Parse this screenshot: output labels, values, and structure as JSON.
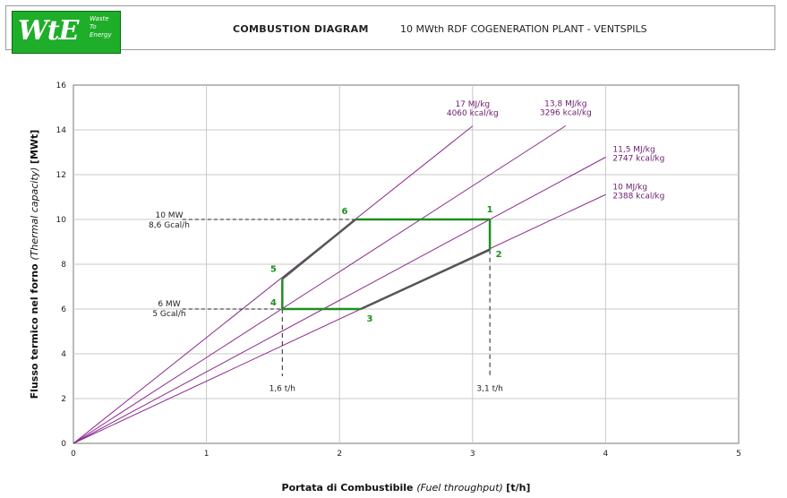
{
  "header": {
    "logo_text": "WtE",
    "logo_tagline": [
      "Waste",
      "To",
      "Energy"
    ],
    "title": "COMBUSTION DIAGRAM",
    "subtitle": "10 MWth RDF COGENERATION PLANT - VENTSPILS"
  },
  "colors": {
    "accent_green": "#1fae2a",
    "fuel_line": "#8b2a8f",
    "operating_green": "#1e8f1e",
    "boundary_gray": "#555555",
    "grid": "#c8c8c8"
  },
  "chart_data": {
    "type": "line",
    "xlabel": {
      "bold": "Portata di Combustibile",
      "italic": "(Fuel throughput)",
      "unit": "[t/h]"
    },
    "ylabel": {
      "bold": "Flusso termico nel forno",
      "italic": "(Thermal capacity)",
      "unit": "[MWt]"
    },
    "xlim": [
      0,
      5
    ],
    "ylim": [
      0,
      16
    ],
    "x_ticks": [
      0,
      1,
      2,
      3,
      4,
      5
    ],
    "y_ticks": [
      0,
      2,
      4,
      6,
      8,
      10,
      12,
      14,
      16
    ],
    "grid": true,
    "fuel_lines": [
      {
        "label_1": "17 MJ/kg",
        "label_2": "4060 kcal/kg",
        "points": [
          [
            0,
            0
          ],
          [
            3,
            14.17
          ]
        ]
      },
      {
        "label_1": "13,8 MJ/kg",
        "label_2": "3296 kcal/kg",
        "points": [
          [
            0,
            0
          ],
          [
            3.7,
            14.18
          ]
        ]
      },
      {
        "label_1": "11,5 MJ/kg",
        "label_2": "2747 kcal/kg",
        "points": [
          [
            0,
            0
          ],
          [
            4,
            12.78
          ]
        ]
      },
      {
        "label_1": "10 MJ/kg",
        "label_2": "2388 kcal/kg",
        "points": [
          [
            0,
            0
          ],
          [
            4,
            11.11
          ]
        ]
      }
    ],
    "operating_points": [
      {
        "label": "1",
        "x": 3.13,
        "y": 10.0
      },
      {
        "label": "2",
        "x": 3.13,
        "y": 8.65
      },
      {
        "label": "3",
        "x": 2.16,
        "y": 6.0
      },
      {
        "label": "4",
        "x": 1.57,
        "y": 6.0
      },
      {
        "label": "5",
        "x": 1.57,
        "y": 7.35
      },
      {
        "label": "6",
        "x": 2.12,
        "y": 10.0
      }
    ],
    "annotations": {
      "max_load": {
        "line1": "10 MW",
        "line2": "8,6 Gcal/h",
        "y": 10
      },
      "min_load": {
        "line1": "6 MW",
        "line2": "5 Gcal/h",
        "y": 6
      },
      "min_fuel": {
        "label": "1,6 t/h",
        "x": 1.57
      },
      "max_fuel": {
        "label": "3,1 t/h",
        "x": 3.13
      }
    }
  }
}
